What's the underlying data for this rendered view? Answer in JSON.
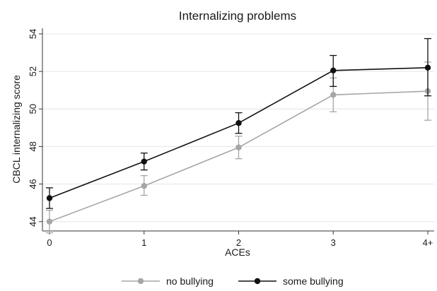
{
  "chart_data": {
    "type": "line",
    "title": "Internalizing problems",
    "xlabel": "ACEs",
    "ylabel": "CBCL internalizing score",
    "categories": [
      "0",
      "1",
      "2",
      "3",
      "4+"
    ],
    "ylim": [
      43.5,
      54.3
    ],
    "yticks": [
      "44",
      "46",
      "48",
      "50",
      "52",
      "54"
    ],
    "grid": true,
    "legend_position": "bottom",
    "series": [
      {
        "name": "no bullying",
        "color": "#a6a6a6",
        "values": [
          44.0,
          45.9,
          47.95,
          50.75,
          50.95
        ],
        "ci_low": [
          43.4,
          45.4,
          47.35,
          49.85,
          49.4
        ],
        "ci_high": [
          44.6,
          46.45,
          48.55,
          51.65,
          52.5
        ]
      },
      {
        "name": "some bullying",
        "color": "#111111",
        "values": [
          45.25,
          47.2,
          49.25,
          52.05,
          52.2
        ],
        "ci_low": [
          44.7,
          46.75,
          48.7,
          51.2,
          50.7
        ],
        "ci_high": [
          45.8,
          47.65,
          49.8,
          52.85,
          53.75
        ]
      }
    ]
  }
}
